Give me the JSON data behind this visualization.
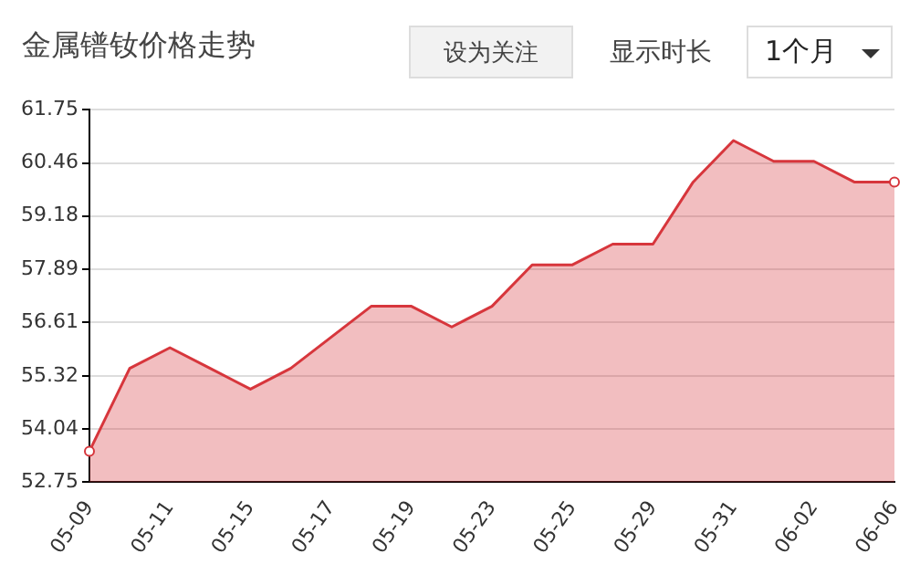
{
  "chart_data": {
    "type": "area",
    "title": "金属镨钕价格走势",
    "annotations": [
      "设为关注",
      "显示时长",
      "1个月"
    ],
    "categories": [
      "05-09",
      null,
      "05-11",
      null,
      "05-15",
      null,
      "05-17",
      null,
      "05-19",
      null,
      "05-23",
      null,
      "05-25",
      null,
      "05-29",
      null,
      "05-31",
      null,
      "06-02",
      null,
      "06-06"
    ],
    "series": [
      {
        "color": "#d7363c",
        "values": [
          53.5,
          55.5,
          56,
          55.5,
          55,
          55.5,
          56.25,
          57,
          57,
          56.5,
          57,
          58,
          58,
          58.5,
          58.5,
          60,
          61,
          60.5,
          60.5,
          60,
          60
        ]
      }
    ],
    "ylim": [
      52.75,
      61.75
    ],
    "yticks": [
      52.75,
      54.04,
      55.32,
      56.61,
      57.89,
      59.18,
      60.46,
      61.75
    ],
    "grid": "y",
    "legend": false
  }
}
